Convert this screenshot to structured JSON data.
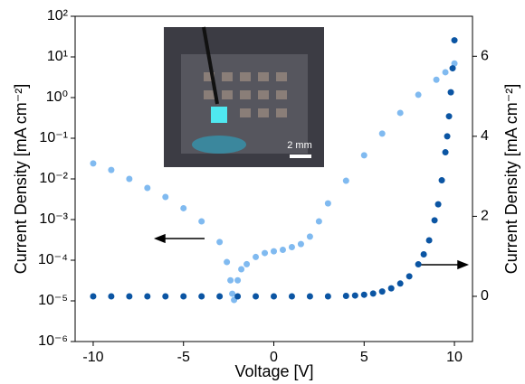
{
  "chart_data": {
    "type": "scatter",
    "xlabel": "Voltage [V]",
    "ylabel": "Current Density [mA cm⁻²]",
    "y2label": "Current Density [mA cm⁻²]",
    "annotation": "2 mm",
    "xlim": [
      -11,
      11
    ],
    "xticks": [
      -10,
      -5,
      0,
      5,
      10
    ],
    "ylim": [
      1e-06,
      100
    ],
    "ylog": true,
    "yticks": [
      {
        "value": 1e-06,
        "label": "10⁻⁶"
      },
      {
        "value": 1e-05,
        "label": "10⁻⁵"
      },
      {
        "value": 0.0001,
        "label": "10⁻⁴"
      },
      {
        "value": 0.001,
        "label": "10⁻³"
      },
      {
        "value": 0.01,
        "label": "10⁻²"
      },
      {
        "value": 0.1,
        "label": "10⁻¹"
      },
      {
        "value": 1,
        "label": "10⁰"
      },
      {
        "value": 10,
        "label": "10¹"
      },
      {
        "value": 100,
        "label": "10²"
      }
    ],
    "y2lim": [
      -1.13,
      7
    ],
    "y2ticks": [
      0,
      2,
      4,
      6
    ],
    "series": [
      {
        "color": "#80baf0",
        "axis": "y",
        "x": [
          -10,
          -9,
          -8,
          -7,
          -6,
          -5,
          -4,
          -3,
          -2.6,
          -2.4,
          -2.3,
          -2.2,
          -2.0,
          -1.8,
          -1.5,
          -1,
          -0.5,
          0,
          0.5,
          1,
          1.5,
          2,
          2.5,
          3,
          4,
          5,
          6,
          7,
          8,
          9,
          9.5,
          10
        ],
        "values": [
          0.024,
          0.0166,
          0.01,
          0.006,
          0.0036,
          0.0019,
          0.0009,
          0.00028,
          9e-05,
          3.2e-05,
          1.5e-05,
          1.05e-05,
          3.2e-05,
          6e-05,
          8e-05,
          0.00012,
          0.00015,
          0.000166,
          0.00018,
          0.00021,
          0.00025,
          0.00038,
          0.0009,
          0.0025,
          0.009,
          0.038,
          0.13,
          0.42,
          1.17,
          2.75,
          4.2,
          6.9
        ]
      },
      {
        "color": "#0b55a3",
        "axis": "y2",
        "x": [
          -10,
          -9,
          -8,
          -7,
          -6,
          -5,
          -4,
          -3,
          -2,
          -1,
          0,
          1,
          2,
          3,
          4,
          4.5,
          5,
          5.5,
          6,
          6.5,
          7,
          7.5,
          8,
          8.3,
          8.6,
          8.9,
          9.1,
          9.3,
          9.5,
          9.6,
          9.7,
          9.8,
          9.9,
          10
        ],
        "values": [
          0,
          0,
          0,
          0,
          0,
          0,
          0,
          0,
          0,
          0,
          0,
          0,
          0,
          0,
          0.01,
          0.02,
          0.04,
          0.07,
          0.12,
          0.2,
          0.32,
          0.5,
          0.8,
          1.05,
          1.4,
          1.9,
          2.3,
          2.9,
          3.6,
          4.0,
          4.5,
          5.1,
          5.7,
          6.4
        ]
      }
    ]
  }
}
